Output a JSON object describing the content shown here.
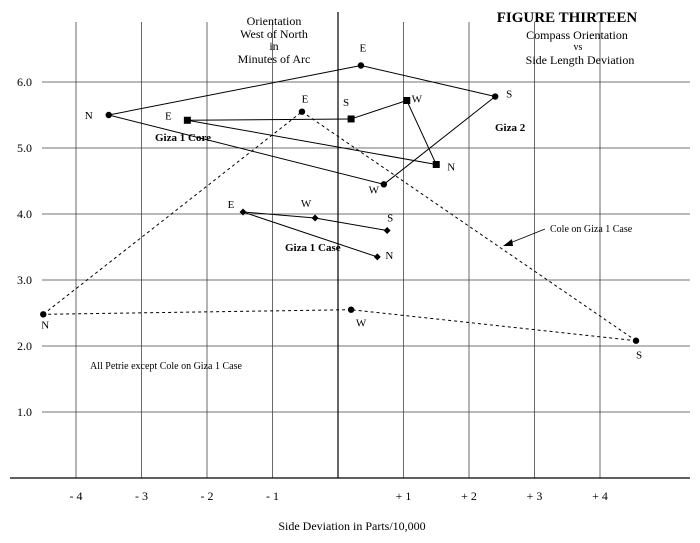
{
  "chart_data": {
    "type": "scatter",
    "title": "FIGURE THIRTEEN",
    "subtitle": [
      "Compass Orientation",
      "vs",
      "Side Length Deviation"
    ],
    "ylabel": [
      "Orientation",
      "West of North",
      "in",
      "Minutes of Arc"
    ],
    "xlabel": "Side Deviation in Parts/10,000",
    "xlim": [
      -4.5,
      5
    ],
    "ylim": [
      0,
      6.6
    ],
    "x_ticks": [
      {
        "value": -4,
        "label": "- 4"
      },
      {
        "value": -3,
        "label": "- 3"
      },
      {
        "value": -2,
        "label": "- 2"
      },
      {
        "value": -1,
        "label": "- 1"
      },
      {
        "value": 1,
        "label": "+ 1"
      },
      {
        "value": 2,
        "label": "+ 2"
      },
      {
        "value": 3,
        "label": "+ 3"
      },
      {
        "value": 4,
        "label": "+ 4"
      }
    ],
    "y_ticks": [
      {
        "value": 1,
        "label": "1.0"
      },
      {
        "value": 2,
        "label": "2.0"
      },
      {
        "value": 3,
        "label": "3.0"
      },
      {
        "value": 4,
        "label": "4.0"
      },
      {
        "value": 5,
        "label": "5.0"
      },
      {
        "value": 6,
        "label": "6.0"
      }
    ],
    "grid": true,
    "series": [
      {
        "name": "Giza 2",
        "marker": "circle",
        "line": "solid",
        "closed": true,
        "points": [
          {
            "label": "N",
            "x": -3.5,
            "y": 5.5
          },
          {
            "label": "E",
            "x": 0.35,
            "y": 6.25
          },
          {
            "label": "S",
            "x": 2.4,
            "y": 5.78
          },
          {
            "label": "W",
            "x": 0.7,
            "y": 4.45
          }
        ]
      },
      {
        "name": "Giza 1 Core",
        "marker": "square",
        "line": "solid",
        "closed": true,
        "points": [
          {
            "label": "E",
            "x": -2.3,
            "y": 5.42
          },
          {
            "label": "S",
            "x": 0.2,
            "y": 5.44
          },
          {
            "label": "W",
            "x": 1.05,
            "y": 5.72
          },
          {
            "label": "N",
            "x": 1.5,
            "y": 4.75
          }
        ]
      },
      {
        "name": "Giza 1 Case",
        "marker": "diamond",
        "line": "solid",
        "closed": false,
        "points": [
          {
            "label": "E",
            "x": -1.45,
            "y": 4.03
          },
          {
            "label": "W",
            "x": -0.35,
            "y": 3.94
          },
          {
            "label": "S",
            "x": 0.75,
            "y": 3.75
          },
          {
            "label": "N",
            "x": 0.6,
            "y": 3.35
          }
        ],
        "segments": [
          [
            0,
            1
          ],
          [
            1,
            2
          ],
          [
            0,
            3
          ]
        ]
      },
      {
        "name": "Cole on Giza 1 Case",
        "marker": "circle",
        "line": "dashed",
        "closed": true,
        "points": [
          {
            "label": "N",
            "x": -4.5,
            "y": 2.48
          },
          {
            "label": "E",
            "x": -0.55,
            "y": 5.55
          },
          {
            "label": "S",
            "x": 4.55,
            "y": 2.08
          },
          {
            "label": "W",
            "x": 0.2,
            "y": 2.55
          }
        ]
      }
    ],
    "annotations": [
      "Giza 1 Core",
      "Giza 2",
      "Giza 1 Case",
      "Cole on Giza 1 Case",
      "All Petrie except Cole on Giza 1 Case"
    ]
  }
}
